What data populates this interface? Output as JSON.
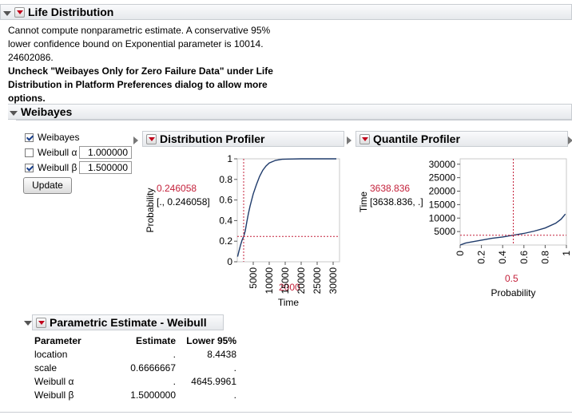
{
  "life": {
    "title": "Life Distribution",
    "message_plain": "Cannot compute nonparametric estimate. A conservative 95% lower confidence bound on Exponential parameter is 10014. 24602086.",
    "message_bold": "Uncheck \"Weibayes Only for Zero Failure Data\" under Life Distribution in Platform Preferences dialog to allow more options."
  },
  "weibayes": {
    "title": "Weibayes",
    "options": [
      {
        "label": "Weibayes",
        "checked": true
      },
      {
        "label": "Weibull α",
        "checked": false,
        "value": "1.000000"
      },
      {
        "label": "Weibull β",
        "checked": true,
        "value": "1.500000"
      }
    ],
    "update_label": "Update"
  },
  "dist_profiler": {
    "title": "Distribution Profiler",
    "y_value": "0.246058",
    "y_ci": "[., 0.246058]",
    "x_value": "2000"
  },
  "quant_profiler": {
    "title": "Quantile Profiler",
    "y_value": "3638.836",
    "y_ci": "[3638.836, .]",
    "x_value": "0.5"
  },
  "param_estimate": {
    "title": "Parametric Estimate - Weibull",
    "headers": [
      "Parameter",
      "Estimate",
      "Lower 95%"
    ],
    "rows": [
      [
        "location",
        ".",
        "8.4438"
      ],
      [
        "scale",
        "0.6666667",
        "."
      ],
      [
        "Weibull α",
        ".",
        "4645.9961"
      ],
      [
        "Weibull β",
        "1.5000000",
        "."
      ]
    ]
  },
  "chart_data": [
    {
      "type": "line",
      "xlabel": "Time",
      "ylabel": "Probability",
      "xlim": [
        0,
        32000
      ],
      "ylim": [
        0,
        1
      ],
      "x_ticks": [
        "5000",
        "10000",
        "15000",
        "20000",
        "25000",
        "30000"
      ],
      "y_ticks": [
        "0",
        "0.2",
        "0.4",
        "0.6",
        "0.8",
        "1"
      ],
      "x_tick_values": [
        5000,
        10000,
        15000,
        20000,
        25000,
        30000
      ],
      "y_tick_values": [
        0,
        0.2,
        0.4,
        0.6,
        0.8,
        1
      ],
      "series": [
        {
          "x": [
            100,
            500,
            1000,
            1500,
            2000,
            2500,
            3000,
            3500,
            4000,
            5000,
            6000,
            7000,
            8000,
            9000,
            10000,
            12000,
            14000,
            16000,
            20000,
            25000,
            31000
          ],
          "y": [
            0.05,
            0.1,
            0.16,
            0.21,
            0.246,
            0.3,
            0.39,
            0.47,
            0.54,
            0.66,
            0.75,
            0.83,
            0.89,
            0.93,
            0.96,
            0.985,
            0.995,
            0.998,
            1,
            1,
            1
          ]
        }
      ],
      "crosshair": {
        "x": 2000,
        "y": 0.246058
      },
      "crosshair_color": "#c4213b"
    },
    {
      "type": "line",
      "xlabel": "Probability",
      "ylabel": "Time",
      "xlim": [
        0,
        1
      ],
      "ylim": [
        0,
        32000
      ],
      "x_ticks": [
        "0",
        "0.2",
        "0.4",
        "0.6",
        "0.8",
        "1"
      ],
      "y_ticks": [
        "5000",
        "10000",
        "15000",
        "20000",
        "25000",
        "30000"
      ],
      "x_tick_values": [
        0,
        0.2,
        0.4,
        0.6,
        0.8,
        1
      ],
      "y_tick_values": [
        5000,
        10000,
        15000,
        20000,
        25000,
        30000
      ],
      "series": [
        {
          "x": [
            0.0,
            0.05,
            0.1,
            0.2,
            0.3,
            0.4,
            0.5,
            0.6,
            0.7,
            0.8,
            0.9,
            0.95,
            0.99
          ],
          "y": [
            0,
            700,
            1100,
            1800,
            2500,
            3000,
            3638.836,
            4300,
            5200,
            6300,
            8100,
            9600,
            11500
          ]
        }
      ],
      "crosshair": {
        "x": 0.5,
        "y": 3638.836
      },
      "crosshair_color": "#c4213b"
    }
  ]
}
